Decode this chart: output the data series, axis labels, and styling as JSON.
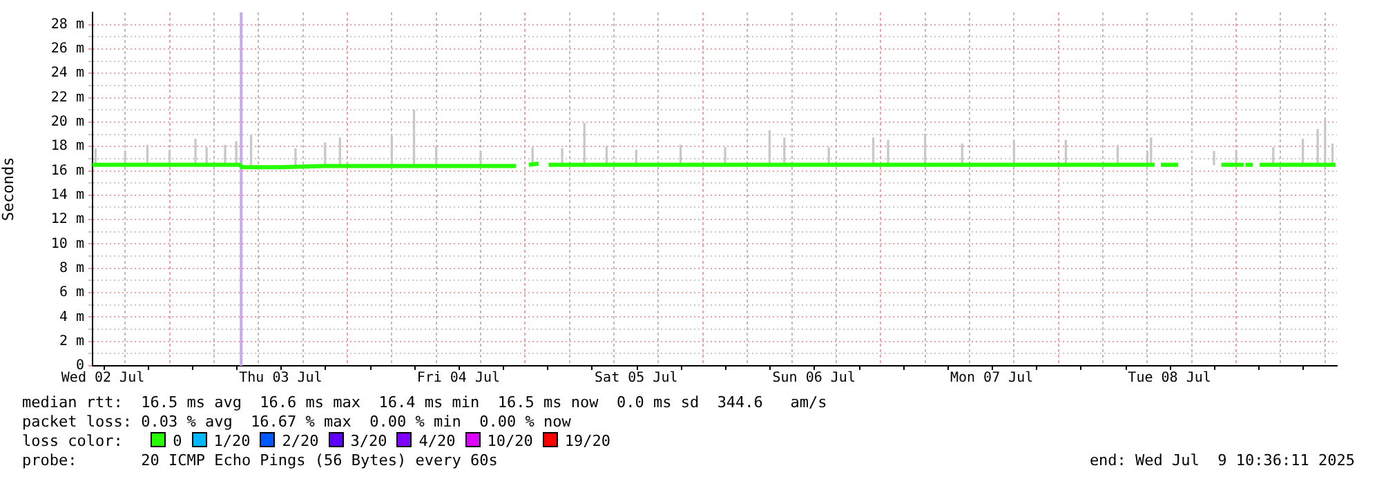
{
  "chart_data": {
    "type": "line",
    "ylabel": "Seconds",
    "legend_title": "loss color:",
    "legend": "bottom",
    "grid": true,
    "marker": "none",
    "line_style": "solid",
    "xlim": [
      "2025-07-02T10:36",
      "2025-07-09T10:36"
    ],
    "xticks": [
      {
        "value": "2025-07-02T12:00",
        "label": "Wed 02 Jul"
      },
      {
        "value": "2025-07-02T18:00",
        "label": null
      },
      {
        "value": "2025-07-03T00:00",
        "label": null
      },
      {
        "value": "2025-07-03T06:00",
        "label": null
      },
      {
        "value": "2025-07-03T12:00",
        "label": "Thu 03 Jul"
      },
      {
        "value": "2025-07-03T18:00",
        "label": null
      },
      {
        "value": "2025-07-04T00:00",
        "label": null
      },
      {
        "value": "2025-07-04T06:00",
        "label": null
      },
      {
        "value": "2025-07-04T12:00",
        "label": "Fri 04 Jul"
      },
      {
        "value": "2025-07-04T18:00",
        "label": null
      },
      {
        "value": "2025-07-05T00:00",
        "label": null
      },
      {
        "value": "2025-07-05T06:00",
        "label": null
      },
      {
        "value": "2025-07-05T12:00",
        "label": "Sat 05 Jul"
      },
      {
        "value": "2025-07-05T18:00",
        "label": null
      },
      {
        "value": "2025-07-06T00:00",
        "label": null
      },
      {
        "value": "2025-07-06T06:00",
        "label": null
      },
      {
        "value": "2025-07-06T12:00",
        "label": "Sun 06 Jul"
      },
      {
        "value": "2025-07-06T18:00",
        "label": null
      },
      {
        "value": "2025-07-07T00:00",
        "label": null
      },
      {
        "value": "2025-07-07T06:00",
        "label": null
      },
      {
        "value": "2025-07-07T12:00",
        "label": "Mon 07 Jul"
      },
      {
        "value": "2025-07-07T18:00",
        "label": null
      },
      {
        "value": "2025-07-08T00:00",
        "label": null
      },
      {
        "value": "2025-07-08T06:00",
        "label": null
      },
      {
        "value": "2025-07-08T12:00",
        "label": "Tue 08 Jul"
      },
      {
        "value": "2025-07-08T18:00",
        "label": null
      },
      {
        "value": "2025-07-09T00:00",
        "label": null
      },
      {
        "value": "2025-07-09T06:00",
        "label": null
      }
    ],
    "ylim": [
      0,
      29
    ],
    "yticks": [
      0,
      {
        "value": 1,
        "label": null
      },
      {
        "value": 2,
        "label": "2 m"
      },
      {
        "value": 3,
        "label": null
      },
      {
        "value": 4,
        "label": "4 m"
      },
      {
        "value": 5,
        "label": null
      },
      {
        "value": 6,
        "label": "6 m"
      },
      {
        "value": 7,
        "label": null
      },
      {
        "value": 8,
        "label": "8 m"
      },
      {
        "value": 9,
        "label": null
      },
      {
        "value": 10,
        "label": "10 m"
      },
      {
        "value": 11,
        "label": null
      },
      {
        "value": 12,
        "label": "12 m"
      },
      {
        "value": 13,
        "label": null
      },
      {
        "value": 14,
        "label": "14 m"
      },
      {
        "value": 15,
        "label": null
      },
      {
        "value": 16,
        "label": "16 m"
      },
      {
        "value": 17,
        "label": null
      },
      {
        "value": 18,
        "label": "18 m"
      },
      {
        "value": 19,
        "label": null
      },
      {
        "value": 20,
        "label": "20 m"
      },
      {
        "value": 21,
        "label": null
      },
      {
        "value": 22,
        "label": "22 m"
      },
      {
        "value": 23,
        "label": null
      },
      {
        "value": 24,
        "label": "24 m"
      },
      {
        "value": 25,
        "label": null
      },
      {
        "value": 26,
        "label": "26 m"
      },
      {
        "value": 27,
        "label": null
      },
      {
        "value": 28,
        "label": "28 m"
      }
    ],
    "ref_lines": [
      {
        "axis": "x",
        "value": "2025-07-03T06:40",
        "color": "#c8a8f0"
      }
    ],
    "series": [
      {
        "type": "bar",
        "color": "#c8c8c8",
        "x": [
          "2025-07-02T11:00",
          "2025-07-02T15:00",
          "2025-07-02T18:00",
          "2025-07-02T21:00",
          "2025-07-03T00:30",
          "2025-07-03T02:00",
          "2025-07-03T04:30",
          "2025-07-03T06:00",
          "2025-07-03T08:00",
          "2025-07-03T14:00",
          "2025-07-03T18:00",
          "2025-07-03T20:00",
          "2025-07-04T03:00",
          "2025-07-04T06:00",
          "2025-07-04T09:00",
          "2025-07-04T15:00",
          "2025-07-04T22:00",
          "2025-07-05T02:00",
          "2025-07-05T05:00",
          "2025-07-05T08:00",
          "2025-07-05T12:00",
          "2025-07-05T18:00",
          "2025-07-06T00:00",
          "2025-07-06T06:00",
          "2025-07-06T08:00",
          "2025-07-06T14:00",
          "2025-07-06T20:00",
          "2025-07-06T22:00",
          "2025-07-07T03:00",
          "2025-07-07T08:00",
          "2025-07-07T15:00",
          "2025-07-07T22:00",
          "2025-07-08T05:00",
          "2025-07-08T09:00",
          "2025-07-08T09:30",
          "2025-07-08T18:00",
          "2025-07-08T21:00",
          "2025-07-09T02:00",
          "2025-07-09T06:00",
          "2025-07-09T08:00",
          "2025-07-09T09:00",
          "2025-07-09T10:00"
        ],
        "base": [
          16.5,
          16.5,
          16.5,
          16.5,
          16.5,
          16.5,
          16.5,
          16.5,
          16.5,
          16.5,
          16.5,
          16.5,
          16.5,
          16.5,
          16.5,
          16.5,
          16.5,
          16.5,
          16.5,
          16.5,
          16.5,
          16.5,
          16.5,
          16.5,
          16.5,
          16.5,
          16.5,
          16.5,
          16.5,
          16.5,
          16.5,
          16.5,
          16.5,
          16.5,
          16.5,
          16.5,
          16.5,
          16.5,
          16.5,
          16.5,
          16.5,
          16.5
        ],
        "values": [
          1.3,
          1.1,
          1.6,
          1.2,
          2.1,
          1.4,
          1.6,
          1.9,
          2.4,
          1.3,
          1.8,
          2.2,
          2.3,
          4.5,
          1.4,
          1.1,
          1.4,
          1.3,
          3.4,
          1.5,
          1.2,
          1.6,
          1.4,
          2.8,
          2.2,
          1.4,
          2.2,
          2,
          2.5,
          1.7,
          1.9,
          2,
          1.6,
          1,
          2.2,
          1.1,
          1.2,
          1.4,
          2.1,
          2.9,
          3.7,
          1.7
        ]
      },
      {
        "name": "0",
        "color": "#26ff00",
        "x": [
          "2025-07-02T10:36",
          "2025-07-03T06:30",
          "2025-07-03T06:45",
          "2025-07-03T12:00",
          "2025-07-03T18:00",
          "2025-07-04T06:00",
          "2025-07-04T12:00",
          "2025-07-04T19:45",
          "2025-07-04T20:30",
          "2025-07-04T21:30",
          "2025-07-04T22:50",
          "2025-07-04T23:30",
          "2025-07-05T00:10",
          "2025-07-05T12:00",
          "2025-07-06T00:00",
          "2025-07-06T12:00",
          "2025-07-07T00:00",
          "2025-07-07T12:00",
          "2025-07-08T00:00",
          "2025-07-08T10:00",
          "2025-07-08T10:30",
          "2025-07-08T10:50",
          "2025-07-08T13:10",
          "2025-07-08T16:00",
          "2025-07-08T19:00",
          "2025-07-08T22:00",
          "2025-07-08T22:05",
          "2025-07-08T22:15",
          "2025-07-08T23:15",
          "2025-07-08T23:45",
          "2025-07-09T00:10",
          "2025-07-09T10:25"
        ],
        "values": [
          16.5,
          16.5,
          16.3,
          16.3,
          16.4,
          16.4,
          16.4,
          16.4,
          null,
          16.5,
          16.6,
          null,
          16.5,
          16.5,
          16.5,
          16.5,
          16.5,
          16.5,
          16.5,
          16.5,
          null,
          16.5,
          16.5,
          null,
          16.5,
          16.5,
          null,
          16.5,
          16.5,
          null,
          16.5,
          16.5
        ]
      },
      {
        "name": "1/20",
        "color": "#00b8ff"
      },
      {
        "name": "2/20",
        "color": "#0059ff"
      },
      {
        "name": "3/20",
        "color": "#5e00ff"
      },
      {
        "name": "4/20",
        "color": "#7e00ff"
      },
      {
        "name": "10/20",
        "color": "#dd00ff"
      },
      {
        "name": "19/20",
        "color": "#ff0000"
      }
    ],
    "annotations": [
      "median rtt:  16.5 ms avg  16.6 ms max  16.4 ms min  16.5 ms now  0.0 ms sd  344.6   am/s",
      "packet loss: 0.03 % avg  16.67 % max  0.00 % min  0.00 % now",
      "probe:       20 ICMP Echo Pings (56 Bytes) every 60s",
      "end: Wed Jul  9 10:36:11 2025"
    ]
  }
}
